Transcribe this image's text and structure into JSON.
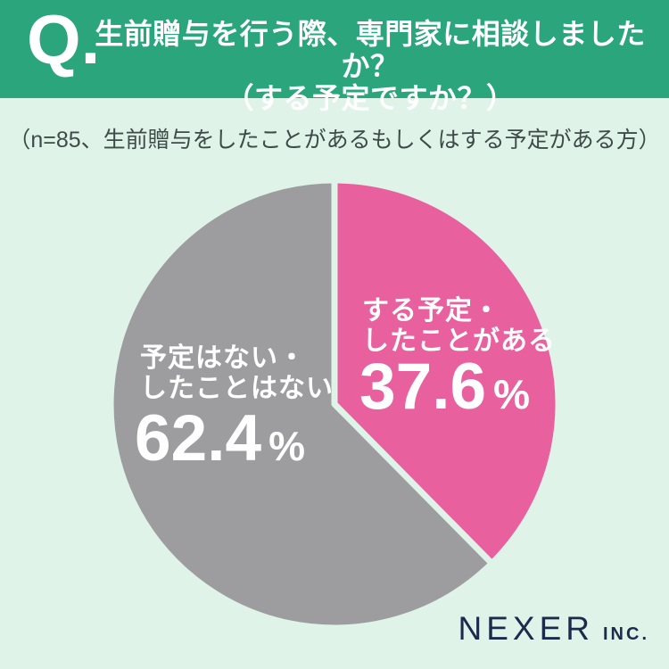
{
  "page": {
    "bg_color": "#DFF3E9"
  },
  "header": {
    "bg_color": "#2AA57C",
    "q_label": "Q.",
    "title_line1": "生前贈与を行う際、専門家に相談しましたか？",
    "title_line2": "（する予定ですか？）"
  },
  "subtitle": "（n=85、生前贈与をしたことがあるもしくはする予定がある方）",
  "chart_data": {
    "type": "pie",
    "title": "生前贈与を行う際、専門家に相談しましたか？（する予定ですか？）",
    "sample_note": "n=85、生前贈与をしたことがあるもしくはする予定がある方",
    "unit": "%",
    "start_angle_deg": 0,
    "direction": "clockwise",
    "legend_position": "inside-slices",
    "slices": [
      {
        "label": "する予定・したことがある",
        "value": 37.6,
        "color": "#E8619E"
      },
      {
        "label": "予定はない・したことはない",
        "value": 62.4,
        "color": "#9D9DA0"
      }
    ]
  },
  "slice_labels": {
    "yes": {
      "line1": "する予定・",
      "line2": "したことがある",
      "value": "37.6",
      "unit": "%"
    },
    "no": {
      "line1": "予定はない・",
      "line2": "したことはない",
      "value": "62.4",
      "unit": "%"
    }
  },
  "footer": {
    "brand": "NEXER",
    "suffix": "INC."
  }
}
